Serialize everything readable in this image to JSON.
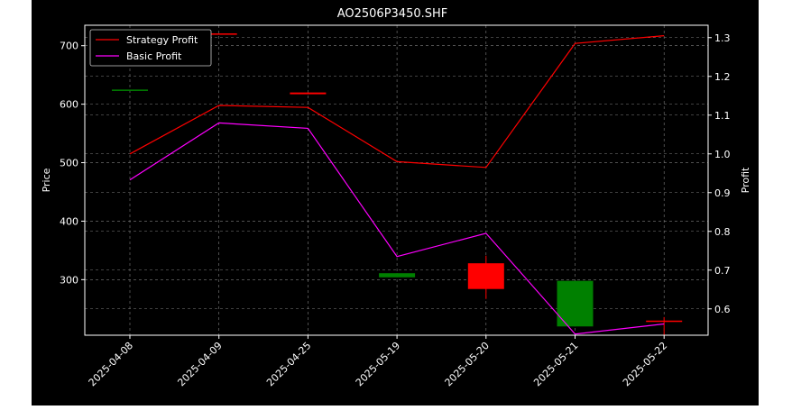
{
  "chart_data": {
    "type": "candlestick+line",
    "title": "AO2506P3450.SHF",
    "xlabel": "",
    "ylabel_left": "Price",
    "ylabel_right": "Profit",
    "categories": [
      "2025-04-08",
      "2025-04-09",
      "2025-04-25",
      "2025-05-19",
      "2025-05-20",
      "2025-05-21",
      "2025-05-22"
    ],
    "ylim_left": [
      205,
      735
    ],
    "yticks_left": [
      "300",
      "400",
      "500",
      "600",
      "700"
    ],
    "ylim_right": [
      0.532,
      1.332
    ],
    "yticks_right": [
      "0.6",
      "0.7",
      "0.8",
      "0.9",
      "1.0",
      "1.1",
      "1.2",
      "1.3"
    ],
    "candles": [
      {
        "x": "2025-04-08",
        "open": 625,
        "high": 625,
        "low": 625,
        "close": 625,
        "color": "#008000"
      },
      {
        "x": "2025-04-09",
        "open": 721,
        "high": 721,
        "low": 721,
        "close": 721,
        "color": "#ff0000"
      },
      {
        "x": "2025-04-25",
        "open": 620,
        "high": 620,
        "low": 617,
        "close": 617,
        "color": "#ff0000"
      },
      {
        "x": "2025-05-19",
        "open": 304,
        "high": 311,
        "low": 304,
        "close": 311,
        "color": "#008000"
      },
      {
        "x": "2025-05-20",
        "open": 328,
        "high": 341,
        "low": 267,
        "close": 284,
        "color": "#ff0000"
      },
      {
        "x": "2025-05-21",
        "open": 220,
        "high": 298,
        "low": 220,
        "close": 298,
        "color": "#008000"
      },
      {
        "x": "2025-05-22",
        "open": 230,
        "high": 236,
        "low": 205,
        "close": 228,
        "color": "#ff0000"
      }
    ],
    "series": [
      {
        "name": "Strategy Profit",
        "axis": "right",
        "color": "#ff0000",
        "values": [
          1.0,
          1.125,
          1.12,
          0.98,
          0.965,
          1.285,
          1.305
        ]
      },
      {
        "name": "Basic Profit",
        "axis": "right",
        "color": "#ff00ff",
        "values": [
          0.933,
          1.08,
          1.066,
          0.735,
          0.795,
          0.535,
          0.561
        ]
      }
    ],
    "grid": true,
    "legend_position": "top-left"
  },
  "colors": {
    "background": "#000000",
    "foreground": "#ffffff",
    "grid": "#808080"
  }
}
